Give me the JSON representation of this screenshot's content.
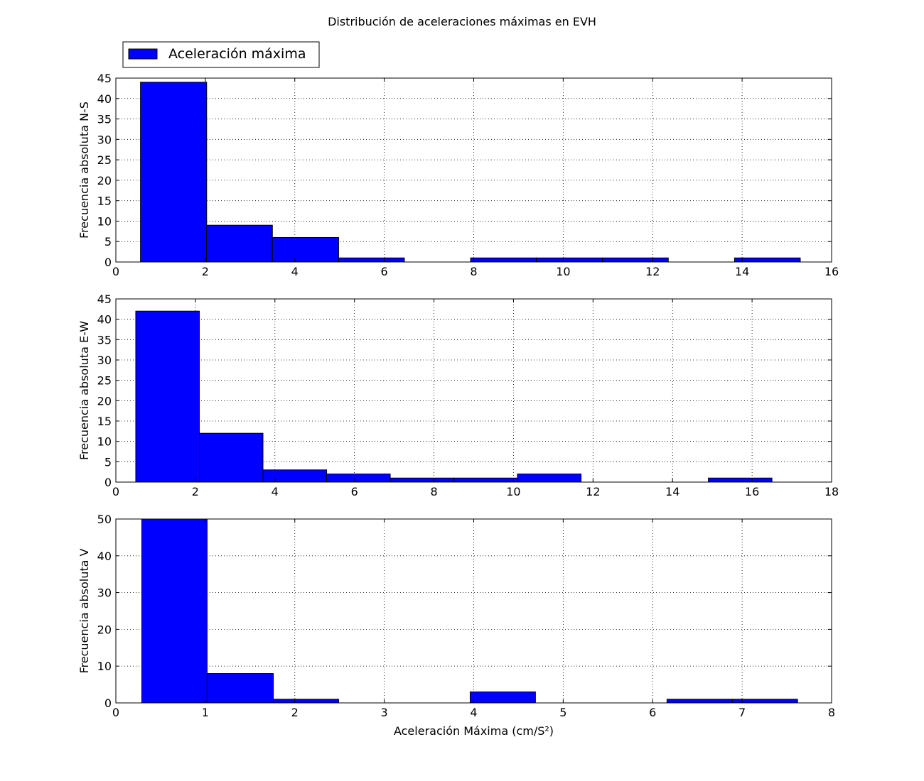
{
  "figure": {
    "title": "Distribución de aceleraciones máximas en EVH",
    "legend_label": "Aceleración máxima",
    "legend_position": "top-left",
    "bar_color": "#0000ff",
    "edge_color": "#000000"
  },
  "chart_data": [
    {
      "type": "bar",
      "subtype": "histogram",
      "title": "",
      "xlabel": "",
      "ylabel": "Frecuencia absoluta N-S",
      "xlim": [
        0,
        16
      ],
      "ylim": [
        0,
        45
      ],
      "xticks": [
        0,
        2,
        4,
        6,
        8,
        10,
        12,
        14,
        16
      ],
      "yticks": [
        0,
        5,
        10,
        15,
        20,
        25,
        30,
        35,
        40,
        45
      ],
      "grid": true,
      "bin_edges": [
        0.55,
        2.03,
        3.5,
        4.98,
        6.45,
        7.93,
        9.4,
        10.88,
        12.35,
        13.83,
        15.3
      ],
      "values": [
        44,
        9,
        6,
        1,
        0,
        1,
        1,
        1,
        0,
        1
      ]
    },
    {
      "type": "bar",
      "subtype": "histogram",
      "title": "",
      "xlabel": "",
      "ylabel": "Frecuencia absoluta E-W",
      "xlim": [
        0,
        18
      ],
      "ylim": [
        0,
        45
      ],
      "xticks": [
        0,
        2,
        4,
        6,
        8,
        10,
        12,
        14,
        16,
        18
      ],
      "yticks": [
        0,
        5,
        10,
        15,
        20,
        25,
        30,
        35,
        40,
        45
      ],
      "grid": true,
      "bin_edges": [
        0.5,
        2.1,
        3.7,
        5.3,
        6.9,
        8.5,
        10.1,
        11.7,
        13.3,
        14.9,
        16.5
      ],
      "values": [
        42,
        12,
        3,
        2,
        1,
        1,
        2,
        0,
        0,
        1
      ]
    },
    {
      "type": "bar",
      "subtype": "histogram",
      "title": "",
      "xlabel": "Aceleración Máxima (cm/S²)",
      "ylabel": "Frecuencia absoluta V",
      "xlim": [
        0,
        8
      ],
      "ylim": [
        0,
        50
      ],
      "xticks": [
        0,
        1,
        2,
        3,
        4,
        5,
        6,
        7,
        8
      ],
      "yticks": [
        0,
        10,
        20,
        30,
        40,
        50
      ],
      "grid": true,
      "bin_edges": [
        0.29,
        1.02,
        1.76,
        2.49,
        3.22,
        3.96,
        4.69,
        5.42,
        6.16,
        6.89,
        7.62
      ],
      "values": [
        50,
        8,
        1,
        0,
        0,
        3,
        0,
        0,
        1,
        1
      ]
    }
  ]
}
